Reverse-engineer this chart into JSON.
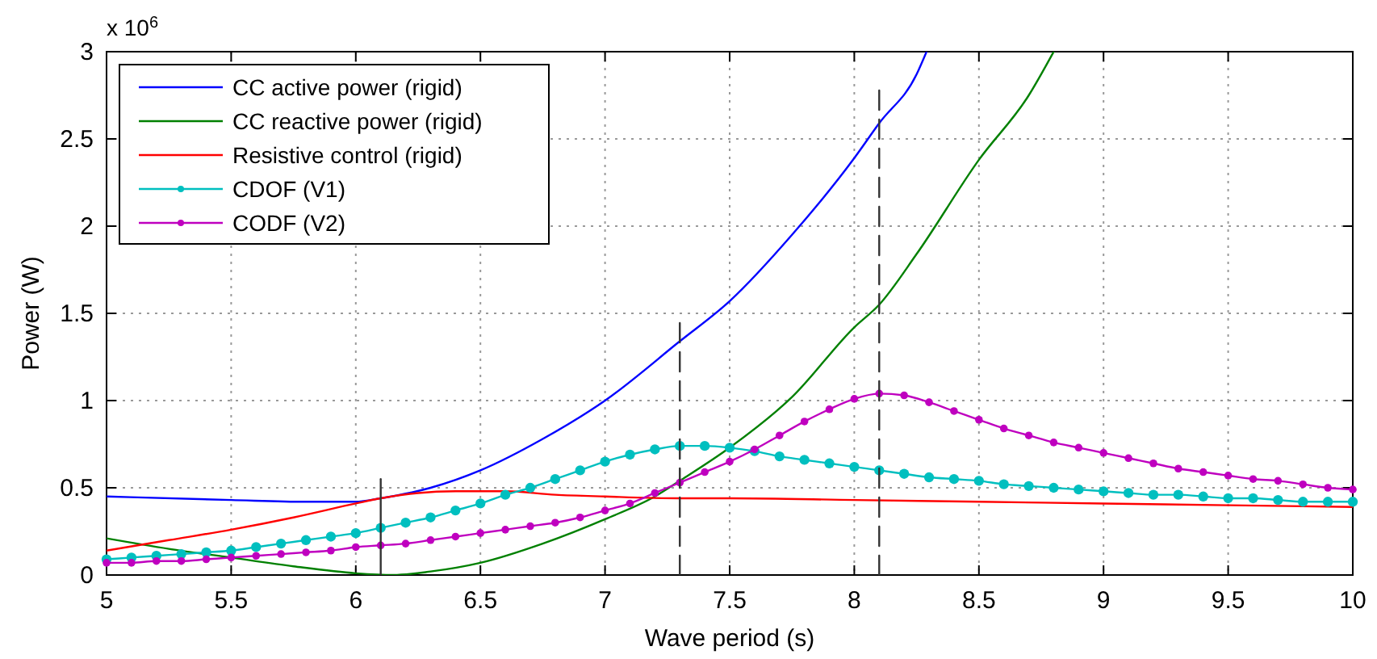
{
  "chart_data": {
    "type": "line",
    "xlabel": "Wave period (s)",
    "ylabel": "Power (W)",
    "annotations": [
      "x 10$^{6}$"
    ],
    "xlim": [
      5,
      10
    ],
    "xticks": [
      5,
      5.5,
      6,
      6.5,
      7,
      7.5,
      8,
      8.5,
      9,
      9.5,
      10
    ],
    "ylim": [
      0,
      3
    ],
    "yticks": [
      0,
      0.5,
      1,
      1.5,
      2,
      2.5,
      3
    ],
    "grid": true,
    "legend": "top left",
    "line_style": "solid",
    "marker": "none",
    "series": [
      {
        "name": "CC active power (rigid)",
        "color": "#0000ff",
        "x": [
          5,
          5.5,
          5.8,
          6,
          6.1,
          6.3,
          6.5,
          6.75,
          7,
          7.3,
          7.5,
          7.75,
          8,
          8.1,
          8.25,
          8.29
        ],
        "values": [
          0.45,
          0.43,
          0.42,
          0.42,
          0.44,
          0.5,
          0.6,
          0.78,
          1.0,
          1.34,
          1.57,
          1.95,
          2.39,
          2.59,
          2.87,
          3.0
        ]
      },
      {
        "name": "CC reactive power (rigid)",
        "color": "#008000",
        "x": [
          5,
          5.25,
          5.5,
          5.75,
          6,
          6.15,
          6.3,
          6.5,
          6.75,
          7,
          7.2,
          7.3,
          7.5,
          7.75,
          8,
          8.1,
          8.25,
          8.5,
          8.7,
          8.8
        ],
        "values": [
          0.21,
          0.15,
          0.1,
          0.05,
          0.01,
          0.0,
          0.02,
          0.07,
          0.18,
          0.32,
          0.45,
          0.54,
          0.73,
          1.02,
          1.42,
          1.55,
          1.84,
          2.38,
          2.75,
          3.0
        ]
      },
      {
        "name": "Resistive control (rigid)",
        "color": "#ff0000",
        "x": [
          5,
          5.25,
          5.5,
          5.75,
          6,
          6.1,
          6.25,
          6.4,
          6.6,
          6.8,
          7,
          7.3,
          7.5,
          8,
          8.5,
          9,
          9.5,
          10
        ],
        "values": [
          0.14,
          0.2,
          0.26,
          0.33,
          0.41,
          0.44,
          0.47,
          0.48,
          0.48,
          0.46,
          0.45,
          0.44,
          0.44,
          0.43,
          0.42,
          0.41,
          0.4,
          0.39
        ]
      },
      {
        "name": "CDOF (V1)",
        "color": "#00bfbf",
        "marker": "circle",
        "x": [
          5,
          5.1,
          5.2,
          5.3,
          5.4,
          5.5,
          5.6,
          5.7,
          5.8,
          5.9,
          6,
          6.1,
          6.2,
          6.3,
          6.4,
          6.5,
          6.6,
          6.7,
          6.8,
          6.9,
          7,
          7.1,
          7.2,
          7.3,
          7.4,
          7.5,
          7.6,
          7.7,
          7.8,
          7.9,
          8,
          8.1,
          8.2,
          8.3,
          8.4,
          8.5,
          8.6,
          8.7,
          8.8,
          8.9,
          9,
          9.1,
          9.2,
          9.3,
          9.4,
          9.5,
          9.6,
          9.7,
          9.8,
          9.9,
          10
        ],
        "values": [
          0.09,
          0.1,
          0.11,
          0.12,
          0.13,
          0.14,
          0.16,
          0.18,
          0.2,
          0.22,
          0.24,
          0.27,
          0.3,
          0.33,
          0.37,
          0.41,
          0.46,
          0.5,
          0.55,
          0.6,
          0.65,
          0.69,
          0.72,
          0.74,
          0.74,
          0.73,
          0.71,
          0.68,
          0.66,
          0.64,
          0.62,
          0.6,
          0.58,
          0.56,
          0.55,
          0.54,
          0.52,
          0.51,
          0.5,
          0.49,
          0.48,
          0.47,
          0.46,
          0.46,
          0.45,
          0.44,
          0.44,
          0.43,
          0.42,
          0.42,
          0.42
        ]
      },
      {
        "name": "CODF (V2)",
        "color": "#bf00bf",
        "marker": "circle",
        "x": [
          5,
          5.1,
          5.2,
          5.3,
          5.4,
          5.5,
          5.6,
          5.7,
          5.8,
          5.9,
          6,
          6.1,
          6.2,
          6.3,
          6.4,
          6.5,
          6.6,
          6.7,
          6.8,
          6.9,
          7,
          7.1,
          7.2,
          7.3,
          7.4,
          7.5,
          7.6,
          7.7,
          7.8,
          7.9,
          8,
          8.1,
          8.2,
          8.3,
          8.4,
          8.5,
          8.6,
          8.7,
          8.8,
          8.9,
          9,
          9.1,
          9.2,
          9.3,
          9.4,
          9.5,
          9.6,
          9.7,
          9.8,
          9.9,
          10
        ],
        "values": [
          0.07,
          0.07,
          0.08,
          0.08,
          0.09,
          0.1,
          0.11,
          0.12,
          0.13,
          0.14,
          0.16,
          0.17,
          0.18,
          0.2,
          0.22,
          0.24,
          0.26,
          0.28,
          0.3,
          0.33,
          0.37,
          0.41,
          0.47,
          0.53,
          0.59,
          0.65,
          0.72,
          0.8,
          0.88,
          0.95,
          1.01,
          1.04,
          1.03,
          0.99,
          0.94,
          0.89,
          0.84,
          0.8,
          0.76,
          0.73,
          0.7,
          0.67,
          0.64,
          0.61,
          0.59,
          0.57,
          0.55,
          0.54,
          0.52,
          0.5,
          0.49
        ]
      },
      {
        "color": "#333333",
        "line_style": "solid",
        "x": [
          6.1,
          6.1
        ],
        "values": [
          0,
          0.55
        ]
      },
      {
        "color": "#333333",
        "line_style": "dashed",
        "x": [
          7.3,
          7.3
        ],
        "values": [
          0,
          1.5
        ]
      },
      {
        "color": "#333333",
        "line_style": "dashed",
        "x": [
          8.1,
          8.1
        ],
        "values": [
          0,
          2.8
        ]
      }
    ]
  }
}
